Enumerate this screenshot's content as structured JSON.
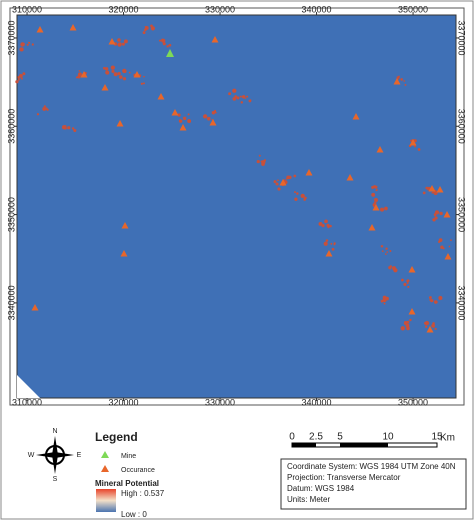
{
  "map": {
    "xticks": [
      310000,
      320000,
      330000,
      340000,
      350000
    ],
    "yticks": [
      3370000,
      3360000,
      3350000,
      3340000
    ],
    "xlim": [
      308960,
      354450
    ],
    "ylim": [
      3329230,
      3372600
    ]
  },
  "legend": {
    "title": "Legend",
    "items": [
      "Mine",
      "Occurance"
    ],
    "raster_title": "Mineral Potential",
    "high": "High : 0.537",
    "low": "Low : 0"
  },
  "north_arrow": {
    "n": "N",
    "e": "E",
    "s": "S",
    "w": "W"
  },
  "scale_bar": {
    "labels": [
      "0",
      "2.5",
      "5",
      "10",
      "15"
    ],
    "unit": "Km"
  },
  "info": [
    "Coordinate System: WGS 1984 UTM Zone 40N",
    "Projection: Transverse Mercator",
    "Datum: WGS 1984",
    "Units: Meter"
  ]
}
